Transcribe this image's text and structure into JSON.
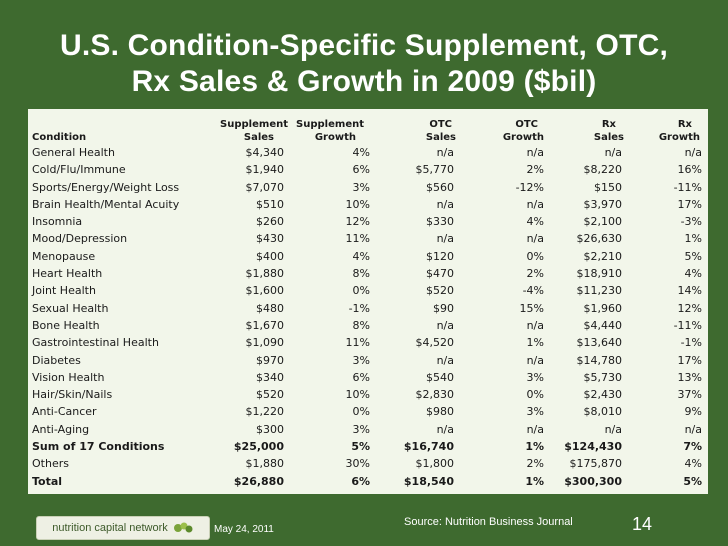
{
  "title_line1": "U.S. Condition-Specific Supplement, OTC,",
  "title_line2": "Rx Sales & Growth in 2009 ($bil)",
  "headers": {
    "condition": [
      "",
      "Condition"
    ],
    "supp_sales": [
      "Supplement",
      "Sales"
    ],
    "supp_growth": [
      "Supplement",
      "Growth"
    ],
    "otc_sales": [
      "OTC",
      "Sales"
    ],
    "otc_growth": [
      "OTC",
      "Growth"
    ],
    "rx_sales": [
      "Rx",
      "Sales"
    ],
    "rx_growth": [
      "Rx",
      "Growth"
    ]
  },
  "rows": [
    [
      "General Health",
      "$4,340",
      "4%",
      "n/a",
      "n/a",
      "n/a",
      "n/a"
    ],
    [
      "Cold/Flu/Immune",
      "$1,940",
      "6%",
      "$5,770",
      "2%",
      "$8,220",
      "16%"
    ],
    [
      "Sports/Energy/Weight Loss",
      "$7,070",
      "3%",
      "$560",
      "-12%",
      "$150",
      "-11%"
    ],
    [
      "Brain Health/Mental Acuity",
      "$510",
      "10%",
      "n/a",
      "n/a",
      "$3,970",
      "17%"
    ],
    [
      "Insomnia",
      "$260",
      "12%",
      "$330",
      "4%",
      "$2,100",
      "-3%"
    ],
    [
      "Mood/Depression",
      "$430",
      "11%",
      "n/a",
      "n/a",
      "$26,630",
      "1%"
    ],
    [
      "Menopause",
      "$400",
      "4%",
      "$120",
      "0%",
      "$2,210",
      "5%"
    ],
    [
      "Heart Health",
      "$1,880",
      "8%",
      "$470",
      "2%",
      "$18,910",
      "4%"
    ],
    [
      "Joint Health",
      "$1,600",
      "0%",
      "$520",
      "-4%",
      "$11,230",
      "14%"
    ],
    [
      "Sexual Health",
      "$480",
      "-1%",
      "$90",
      "15%",
      "$1,960",
      "12%"
    ],
    [
      "Bone Health",
      "$1,670",
      "8%",
      "n/a",
      "n/a",
      "$4,440",
      "-11%"
    ],
    [
      "Gastrointestinal Health",
      "$1,090",
      "11%",
      "$4,520",
      "1%",
      "$13,640",
      "-1%"
    ],
    [
      "Diabetes",
      "$970",
      "3%",
      "n/a",
      "n/a",
      "$14,780",
      "17%"
    ],
    [
      "Vision Health",
      "$340",
      "6%",
      "$540",
      "3%",
      "$5,730",
      "13%"
    ],
    [
      "Hair/Skin/Nails",
      "$520",
      "10%",
      "$2,830",
      "0%",
      "$2,430",
      "37%"
    ],
    [
      "Anti-Cancer",
      "$1,220",
      "0%",
      "$980",
      "3%",
      "$8,010",
      "9%"
    ],
    [
      "Anti-Aging",
      "$300",
      "3%",
      "n/a",
      "n/a",
      "n/a",
      "n/a"
    ],
    [
      "Sum of 17 Conditions",
      "$25,000",
      "5%",
      "$16,740",
      "1%",
      "$124,430",
      "7%"
    ],
    [
      "Others",
      "$1,880",
      "30%",
      "$1,800",
      "2%",
      "$175,870",
      "4%"
    ],
    [
      "Total",
      "$26,880",
      "6%",
      "$18,540",
      "1%",
      "$300,300",
      "5%"
    ]
  ],
  "footer": {
    "logo_text": "nutrition capital network",
    "date": "May 24, 2011",
    "source": "Source: Nutrition Business Journal",
    "page_number": "14"
  },
  "colors": {
    "background": "#3e6a2f",
    "panel": "#f2f6ea",
    "text": "#1a1a1a"
  }
}
